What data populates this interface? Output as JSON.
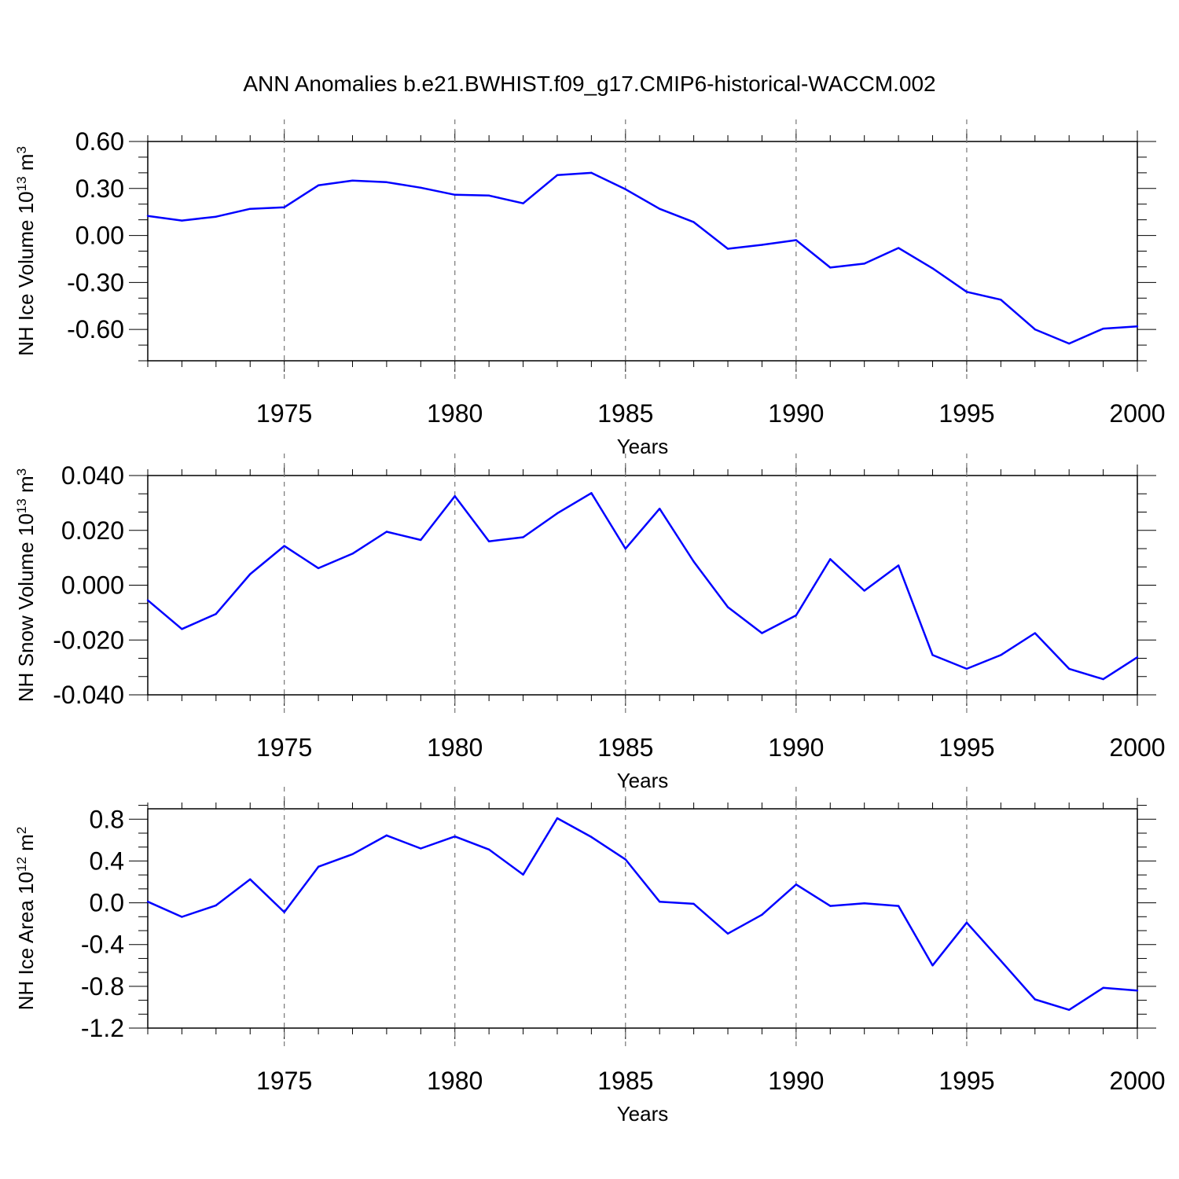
{
  "title": "ANN Anomalies b.e21.BWHIST.f09_g17.CMIP6-historical-WACCM.002",
  "line_color": "#0000ff",
  "chart_data": [
    {
      "type": "line",
      "xlabel": "Years",
      "ylabel": "NH Ice Volume 10",
      "ylabel_exp": "13",
      "ylabel_unit": " m",
      "ylabel_unit_exp": "3",
      "xlim": [
        1971,
        2000
      ],
      "ylim": [
        -0.8,
        0.6
      ],
      "yticks": [
        0.6,
        0.3,
        0.0,
        -0.3,
        -0.6
      ],
      "ytick_labels": [
        "0.60",
        "0.30",
        "0.00",
        "-0.30",
        "-0.60"
      ],
      "xticks": [
        1975,
        1980,
        1985,
        1990,
        1995,
        2000
      ],
      "xtick_labels": [
        "1975",
        "1980",
        "1985",
        "1990",
        "1995",
        "2000"
      ],
      "grid": "vertical dashed at major years",
      "x": [
        1971,
        1972,
        1973,
        1974,
        1975,
        1976,
        1977,
        1978,
        1979,
        1980,
        1981,
        1982,
        1983,
        1984,
        1985,
        1986,
        1987,
        1988,
        1989,
        1990,
        1991,
        1992,
        1993,
        1994,
        1995,
        1996,
        1997,
        1998,
        1999,
        2000
      ],
      "values": [
        0.125,
        0.095,
        0.12,
        0.17,
        0.18,
        0.32,
        0.35,
        0.34,
        0.305,
        0.26,
        0.255,
        0.205,
        0.385,
        0.4,
        0.295,
        0.17,
        0.085,
        -0.085,
        -0.06,
        -0.03,
        -0.205,
        -0.18,
        -0.08,
        -0.21,
        -0.36,
        -0.41,
        -0.6,
        -0.69,
        -0.595,
        -0.58
      ]
    },
    {
      "type": "line",
      "xlabel": "Years",
      "ylabel": "NH Snow Volume 10",
      "ylabel_exp": "13",
      "ylabel_unit": " m",
      "ylabel_unit_exp": "3",
      "xlim": [
        1971,
        2000
      ],
      "ylim": [
        -0.04,
        0.04
      ],
      "yticks": [
        0.04,
        0.02,
        0.0,
        -0.02,
        -0.04
      ],
      "ytick_labels": [
        "0.040",
        "0.020",
        "0.000",
        "-0.020",
        "-0.040"
      ],
      "xticks": [
        1975,
        1980,
        1985,
        1990,
        1995,
        2000
      ],
      "xtick_labels": [
        "1975",
        "1980",
        "1985",
        "1990",
        "1995",
        "2000"
      ],
      "grid": "vertical dashed at major years",
      "x": [
        1971,
        1972,
        1973,
        1974,
        1975,
        1976,
        1977,
        1978,
        1979,
        1980,
        1981,
        1982,
        1983,
        1984,
        1985,
        1986,
        1987,
        1988,
        1989,
        1990,
        1991,
        1992,
        1993,
        1994,
        1995,
        1996,
        1997,
        1998,
        1999,
        2000
      ],
      "values": [
        -0.0055,
        -0.016,
        -0.0105,
        0.004,
        0.0143,
        0.0062,
        0.0115,
        0.0195,
        0.0165,
        0.0325,
        0.016,
        0.0175,
        0.0262,
        0.0336,
        0.0133,
        0.0279,
        0.0086,
        -0.008,
        -0.0175,
        -0.011,
        0.0095,
        -0.002,
        0.0072,
        -0.0255,
        -0.0305,
        -0.0255,
        -0.0175,
        -0.0305,
        -0.0343,
        -0.0263
      ]
    },
    {
      "type": "line",
      "xlabel": "Years",
      "ylabel": "NH Ice Area 10",
      "ylabel_exp": "12",
      "ylabel_unit": " m",
      "ylabel_unit_exp": "2",
      "xlim": [
        1971,
        2000
      ],
      "ylim": [
        -1.2,
        0.9
      ],
      "yticks": [
        0.8,
        0.4,
        0.0,
        -0.4,
        -0.8,
        -1.2
      ],
      "ytick_labels": [
        "0.8",
        "0.4",
        "0.0",
        "-0.4",
        "-0.8",
        "-1.2"
      ],
      "xticks": [
        1975,
        1980,
        1985,
        1990,
        1995,
        2000
      ],
      "xtick_labels": [
        "1975",
        "1980",
        "1985",
        "1990",
        "1995",
        "2000"
      ],
      "grid": "vertical dashed at major years",
      "x": [
        1971,
        1972,
        1973,
        1974,
        1975,
        1976,
        1977,
        1978,
        1979,
        1980,
        1981,
        1982,
        1983,
        1984,
        1985,
        1986,
        1987,
        1988,
        1989,
        1990,
        1991,
        1992,
        1993,
        1994,
        1995,
        1996,
        1997,
        1998,
        1999,
        2000
      ],
      "values": [
        0.01,
        -0.135,
        -0.025,
        0.225,
        -0.09,
        0.345,
        0.465,
        0.645,
        0.52,
        0.635,
        0.51,
        0.27,
        0.81,
        0.63,
        0.415,
        0.01,
        -0.01,
        -0.295,
        -0.115,
        0.175,
        -0.03,
        -0.005,
        -0.03,
        -0.6,
        -0.19,
        -0.555,
        -0.925,
        -1.025,
        -0.815,
        -0.84
      ]
    }
  ]
}
